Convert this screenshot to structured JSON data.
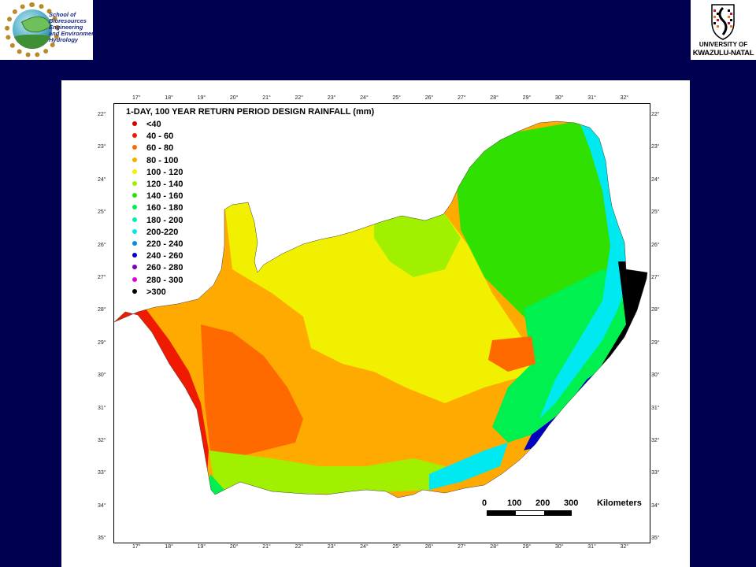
{
  "logos": {
    "left": {
      "lines": [
        "School of",
        "Bioresources",
        "Engineering",
        "and Environmental",
        "Hydrology"
      ]
    },
    "right": {
      "line1": "UNIVERSITY OF",
      "line2": "KWAZULU-NATAL"
    }
  },
  "map": {
    "title": "1-DAY, 100 YEAR RETURN PERIOD DESIGN RAINFALL (mm)",
    "top_ticks": [
      "17°",
      "18°",
      "19°",
      "20°",
      "21°",
      "22°",
      "23°",
      "24°",
      "25°",
      "26°",
      "27°",
      "28°",
      "29°",
      "30°",
      "31°",
      "32°"
    ],
    "bottom_ticks": [
      "17°",
      "18°",
      "19°",
      "20°",
      "21°",
      "22°",
      "23°",
      "24°",
      "25°",
      "26°",
      "27°",
      "28°",
      "29°",
      "30°",
      "31°",
      "32°"
    ],
    "left_ticks": [
      "22°",
      "23°",
      "24°",
      "25°",
      "26°",
      "27°",
      "28°",
      "29°",
      "30°",
      "31°",
      "32°",
      "33°",
      "34°",
      "35°"
    ],
    "right_ticks": [
      "22°",
      "23°",
      "24°",
      "25°",
      "26°",
      "27°",
      "28°",
      "29°",
      "30°",
      "31°",
      "32°",
      "33°",
      "34°",
      "35°"
    ],
    "legend": [
      {
        "label": "<40",
        "color": "#d40000"
      },
      {
        "label": "40 - 60",
        "color": "#f01a00"
      },
      {
        "label": "60 - 80",
        "color": "#ff6a00"
      },
      {
        "label": "80 - 100",
        "color": "#ffaa00"
      },
      {
        "label": "100 - 120",
        "color": "#f0f000"
      },
      {
        "label": "120 - 140",
        "color": "#a0f000"
      },
      {
        "label": "140 - 160",
        "color": "#30e000"
      },
      {
        "label": "160 - 180",
        "color": "#00f050"
      },
      {
        "label": "180 - 200",
        "color": "#00f0b0"
      },
      {
        "label": "200-220",
        "color": "#00e8f0"
      },
      {
        "label": "220 - 240",
        "color": "#0090e0"
      },
      {
        "label": "240 - 260",
        "color": "#0000c0"
      },
      {
        "label": "260 - 280",
        "color": "#8000c0"
      },
      {
        "label": "280 - 300",
        "color": "#e000e0"
      },
      {
        "label": ">300",
        "color": "#000000"
      }
    ],
    "scale": {
      "labels": [
        "0",
        "100",
        "200",
        "300"
      ],
      "unit": "Kilometers"
    }
  }
}
